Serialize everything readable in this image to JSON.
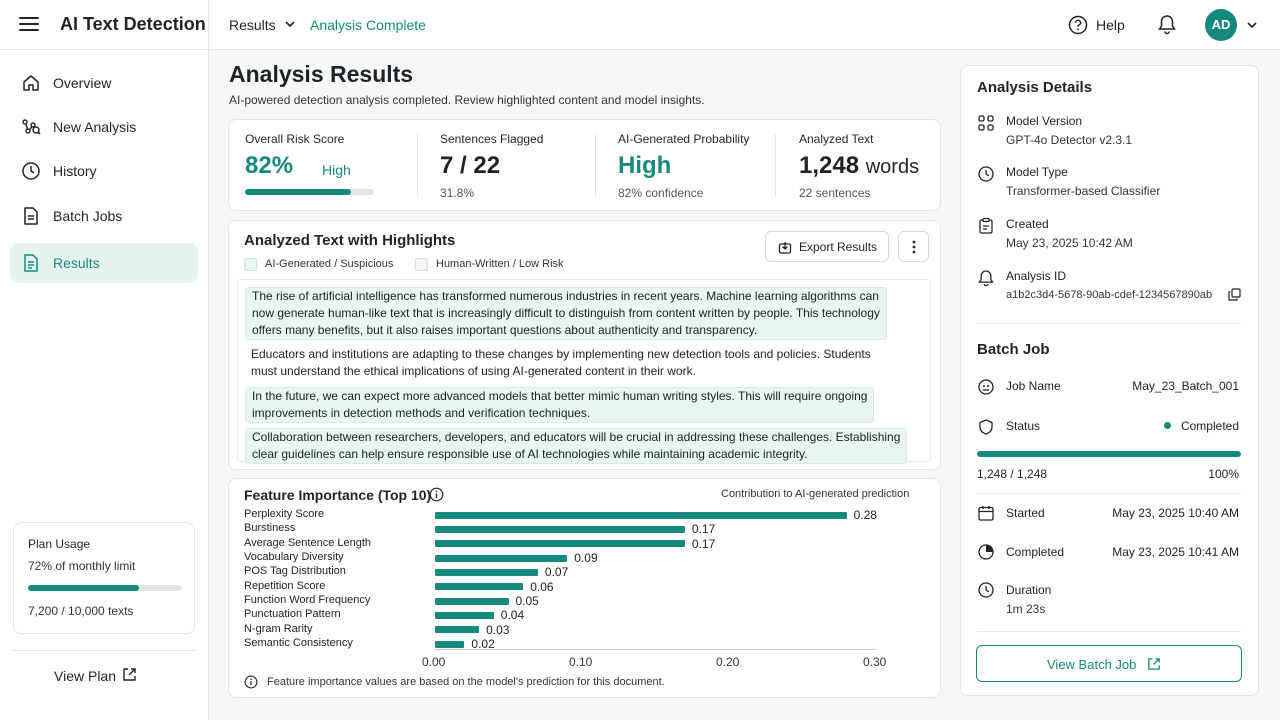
{
  "header": {
    "app_title": "AI Text Detection",
    "breadcrumb": [
      "Results",
      "Analysis Complete"
    ],
    "help_label": "Help",
    "avatar_initials": "AD"
  },
  "sidebar": {
    "items": [
      {
        "label": "Overview",
        "icon": "home-icon"
      },
      {
        "label": "New Analysis",
        "icon": "analysis-icon"
      },
      {
        "label": "History",
        "icon": "clock-icon"
      },
      {
        "label": "Batch Jobs",
        "icon": "document-icon"
      },
      {
        "label": "Results",
        "icon": "results-icon",
        "active": true
      }
    ],
    "plan": {
      "title": "Plan Usage",
      "subtitle": "72% of monthly limit",
      "usage_fraction": 0.72,
      "count": "7,200 / 10,000 texts"
    },
    "view_plan": "View Plan"
  },
  "main": {
    "title": "Analysis Results",
    "subtitle": "AI-powered detection analysis completed. Review highlighted content and model insights.",
    "metrics": [
      {
        "label": "Overall Risk Score",
        "value": "82%",
        "badge": "High",
        "fraction": 0.82
      },
      {
        "label": "Sentences Flagged",
        "value": "7 / 22",
        "sub": "31.8%"
      },
      {
        "label": "AI-Generated Probability",
        "value": "High",
        "sub": "82% confidence"
      },
      {
        "label": "Analyzed Text",
        "value": "1,248",
        "unit": "words",
        "sub": "22 sentences"
      }
    ],
    "analyzed": {
      "title": "Analyzed Text with Highlights",
      "legend": [
        "AI-Generated / Suspicious",
        "Human-Written / Low Risk"
      ],
      "export_label": "Export Results",
      "paragraphs": [
        {
          "lines": [
            "The rise of artificial intelligence has transformed numerous industries in recent years. Machine learning algorithms can",
            "now generate human-like text that is increasingly difficult to distinguish from content written by people. This technology",
            "offers many benefits, but it also raises important questions about authenticity and transparency."
          ],
          "flagged": true
        },
        {
          "lines": [
            "Educators and institutions are adapting to these changes by implementing new detection tools and policies. Students",
            "must understand the ethical implications of using AI-generated content in their work."
          ],
          "flagged": false
        },
        {
          "lines": [
            "In the future, we can expect more advanced models that better mimic human writing styles. This will require ongoing",
            "improvements in detection methods and verification techniques."
          ],
          "flagged": true
        },
        {
          "lines": [
            "Collaboration between researchers, developers, and educators will be crucial in addressing these challenges. Establishing",
            "clear guidelines can help ensure responsible use of AI technologies while maintaining academic integrity."
          ],
          "flagged": true
        }
      ]
    },
    "feature_importance": {
      "title": "Feature Importance (Top 10)",
      "note": "Contribution to AI-generated prediction",
      "footnote": "Feature importance values are based on the model's prediction for this document."
    }
  },
  "chart_data": {
    "type": "bar",
    "orientation": "horizontal",
    "categories": [
      "Perplexity Score",
      "Burstiness",
      "Average Sentence Length",
      "Vocabulary Diversity",
      "POS Tag Distribution",
      "Repetition Score",
      "Function Word Frequency",
      "Punctuation Pattern",
      "N-gram Rarity",
      "Semantic Consistency"
    ],
    "values": [
      0.28,
      0.17,
      0.17,
      0.09,
      0.07,
      0.06,
      0.05,
      0.04,
      0.03,
      0.02
    ],
    "value_labels": [
      "0.28",
      "0.17",
      "0.17",
      "0.09",
      "0.07",
      "0.06",
      "0.05",
      "0.04",
      "0.03",
      "0.02"
    ],
    "xlim": [
      0,
      0.3
    ],
    "xticks": [
      "0.00",
      "0.10",
      "0.20",
      "0.30"
    ],
    "title": "Feature Importance (Top 10)",
    "grid": false
  },
  "details": {
    "title": "Analysis Details",
    "items": [
      {
        "label": "Model Version",
        "value": "GPT-4o Detector v2.3.1",
        "icon": "model-icon",
        "link": true
      },
      {
        "label": "Model Type",
        "value": "Transformer-based Classifier",
        "icon": "clock-icon"
      },
      {
        "label": "Created",
        "value": "May 23, 2025 10:42 AM",
        "icon": "clipboard-icon"
      },
      {
        "label": "Analysis ID",
        "value": "a1b2c3d4-5678-90ab-cdef-1234567890ab",
        "icon": "bell-icon"
      }
    ]
  },
  "batch": {
    "title": "Batch Job",
    "job_name_label": "Job Name",
    "job_name": "May_23_Batch_001",
    "status_label": "Status",
    "status": "Completed",
    "status_color": "#14897d",
    "progress": "1,248 / 1,248",
    "progress_pct": "100%",
    "progress_fraction": 1.0,
    "rows": [
      {
        "label": "Started",
        "value": "May 23, 2025 10:40 AM",
        "icon": "calendar-icon"
      },
      {
        "label": "Completed",
        "value": "May 23, 2025 10:41 AM",
        "icon": "pie-icon"
      }
    ],
    "duration_label": "Duration",
    "duration": "1m 23s",
    "view_label": "View Batch Job"
  },
  "colors": {
    "accent": "#14897d",
    "flag_bg": "#e9f5ef"
  }
}
